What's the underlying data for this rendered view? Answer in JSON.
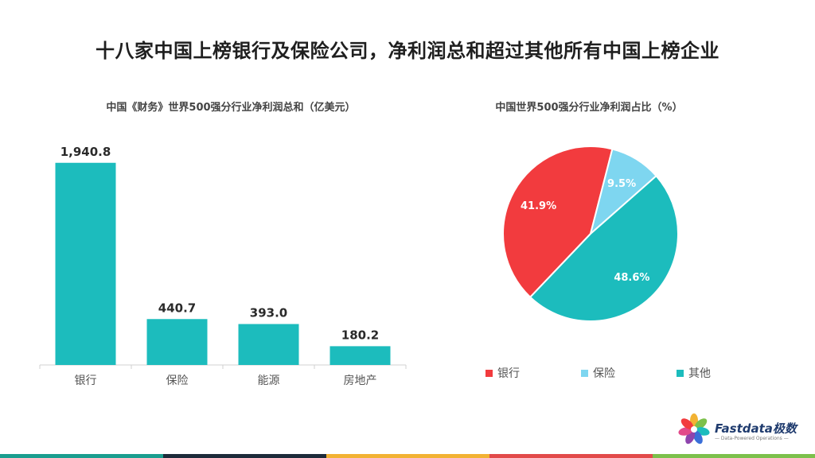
{
  "title": "十八家中国上榜银行及保险公司，净利润总和超过其他所有中国上榜企业",
  "bar_chart": {
    "title": "中国《财务》世界500强分行业净利润总和（亿美元）"
  },
  "pie_chart": {
    "title": "中国世界500强分行业净利润占比（%）"
  },
  "chart_data": [
    {
      "type": "bar",
      "title": "中国《财务》世界500强分行业净利润总和（亿美元）",
      "categories": [
        "银行",
        "保险",
        "能源",
        "房地产"
      ],
      "values": [
        1940.8,
        440.7,
        393.0,
        180.2
      ],
      "value_labels": [
        "1,940.8",
        "440.7",
        "393.0",
        "180.2"
      ],
      "ylim": [
        0,
        2000
      ],
      "grid": false,
      "color": "#1cbcbd"
    },
    {
      "type": "pie",
      "title": "中国世界500强分行业净利润占比（%）",
      "labels": [
        "银行",
        "保险",
        "其他"
      ],
      "values": [
        41.9,
        9.5,
        48.6
      ],
      "value_labels": [
        "41.9%",
        "9.5%",
        "48.6%"
      ],
      "colors": [
        "#f23b3e",
        "#7ed6f0",
        "#1cbcbd"
      ],
      "legend": "bottom"
    }
  ],
  "legend": {
    "items": [
      {
        "label": "银行",
        "color": "#f23b3e"
      },
      {
        "label": "保险",
        "color": "#7ed6f0"
      },
      {
        "label": "其他",
        "color": "#1cbcbd"
      }
    ]
  },
  "logo": {
    "name": "Fastdata极数",
    "tagline": "— Data-Powered Operations —"
  },
  "bottom_strip_colors": [
    "#1a9e8f",
    "#1d2b3a",
    "#f2b233",
    "#e24a4a",
    "#7cc04b"
  ]
}
